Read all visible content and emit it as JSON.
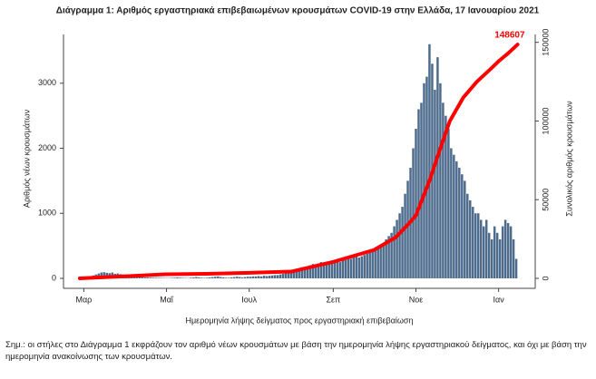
{
  "chart_data": {
    "type": "bar-line",
    "title": "Διάγραμμα 1: Αριθμός εργαστηριακά επιβεβαιωμένων κρουσμάτων COVID-19 στην Ελλάδα, 17 Ιανουαρίου 2021",
    "ylabel": "Αριθμός νέων κρουσμάτων",
    "y2label": "Συνολικός αριθμός κρουσμάτων",
    "xlabel": "Ημερομηνία λήψης δείγματος προς εργαστηριακή επιβεβαίωση",
    "note": "Σημ.: οι στήλες στο Διάγραμμα 1 εκφράζουν τον αριθμό νέων κρουσμάτων με βάση την ημερομηνία λήψης εργαστηριακού δείγματος, και όχι με βάση την ημερομηνία ανακοίνωσης των κρουσμάτων.",
    "xlim": [
      -15,
      333
    ],
    "xticks": [
      {
        "value": 0,
        "label": "Μαρ"
      },
      {
        "value": 61,
        "label": "Μαΐ"
      },
      {
        "value": 122,
        "label": "Ιουλ"
      },
      {
        "value": 184,
        "label": "Σεπ"
      },
      {
        "value": 245,
        "label": "Νοε"
      },
      {
        "value": 306,
        "label": "Ιαν"
      }
    ],
    "ylim": [
      0,
      3750
    ],
    "yticks": [
      0,
      1000,
      2000,
      3000
    ],
    "y2lim": [
      0,
      155000
    ],
    "y2ticks": [
      0,
      50000,
      100000,
      150000
    ],
    "bars": {
      "color": "#4d6b8c",
      "x": [
        -3,
        -1,
        1,
        3,
        5,
        7,
        9,
        11,
        13,
        15,
        17,
        19,
        21,
        23,
        25,
        27,
        29,
        31,
        33,
        35,
        37,
        39,
        41,
        43,
        45,
        47,
        49,
        51,
        53,
        55,
        57,
        59,
        61,
        63,
        65,
        67,
        69,
        71,
        73,
        75,
        77,
        79,
        81,
        83,
        85,
        87,
        89,
        91,
        93,
        95,
        97,
        99,
        101,
        103,
        105,
        107,
        109,
        111,
        113,
        115,
        117,
        119,
        121,
        123,
        125,
        127,
        129,
        131,
        133,
        135,
        137,
        139,
        141,
        143,
        145,
        147,
        149,
        151,
        153,
        155,
        157,
        159,
        161,
        163,
        165,
        167,
        169,
        171,
        173,
        175,
        177,
        179,
        181,
        183,
        185,
        187,
        189,
        191,
        193,
        195,
        197,
        199,
        201,
        203,
        205,
        207,
        209,
        211,
        213,
        215,
        217,
        219,
        221,
        223,
        225,
        227,
        229,
        231,
        233,
        235,
        237,
        239,
        241,
        243,
        245,
        247,
        249,
        251,
        253,
        255,
        257,
        259,
        261,
        263,
        265,
        267,
        269,
        271,
        273,
        275,
        277,
        279,
        281,
        283,
        285,
        287,
        289,
        291,
        293,
        295,
        297,
        299,
        301,
        303,
        305,
        307,
        309,
        311,
        313,
        315,
        317,
        319
      ],
      "values": [
        2,
        5,
        10,
        20,
        30,
        45,
        60,
        75,
        90,
        95,
        85,
        80,
        90,
        70,
        75,
        65,
        60,
        60,
        55,
        45,
        40,
        30,
        25,
        20,
        15,
        15,
        12,
        10,
        10,
        8,
        8,
        6,
        5,
        5,
        8,
        10,
        15,
        10,
        8,
        6,
        5,
        10,
        15,
        20,
        15,
        10,
        8,
        10,
        15,
        20,
        25,
        30,
        20,
        15,
        10,
        10,
        15,
        20,
        25,
        20,
        15,
        20,
        25,
        25,
        30,
        30,
        35,
        30,
        40,
        35,
        40,
        45,
        50,
        50,
        60,
        70,
        80,
        90,
        100,
        120,
        130,
        150,
        170,
        160,
        180,
        200,
        220,
        200,
        230,
        250,
        240,
        210,
        220,
        250,
        240,
        260,
        250,
        300,
        280,
        310,
        300,
        330,
        350,
        320,
        340,
        360,
        380,
        400,
        420,
        450,
        480,
        500,
        520,
        600,
        650,
        700,
        800,
        900,
        1000,
        1100,
        1300,
        1500,
        1700,
        2000,
        2300,
        2600,
        2700,
        3000,
        3100,
        3600,
        3300,
        2900,
        3400,
        3000,
        2700,
        2500,
        2300,
        2000,
        1900,
        1800,
        1700,
        1600,
        1500,
        1300,
        1200,
        1100,
        1000,
        1000,
        900,
        800,
        900,
        700,
        600,
        800,
        700,
        600,
        800,
        900,
        850,
        800,
        600,
        300
      ]
    },
    "line": {
      "color": "#ff0000",
      "axis": "y2",
      "x": [
        -3,
        30,
        60,
        90,
        122,
        153,
        184,
        214,
        230,
        240,
        245,
        255,
        262,
        270,
        280,
        290,
        300,
        306,
        313,
        320
      ],
      "values": [
        0,
        1300,
        2600,
        2900,
        3500,
        4300,
        10500,
        18000,
        26000,
        35000,
        40000,
        62000,
        80000,
        100000,
        115000,
        125000,
        133000,
        138000,
        143000,
        148607
      ]
    },
    "end_label": "148607"
  }
}
